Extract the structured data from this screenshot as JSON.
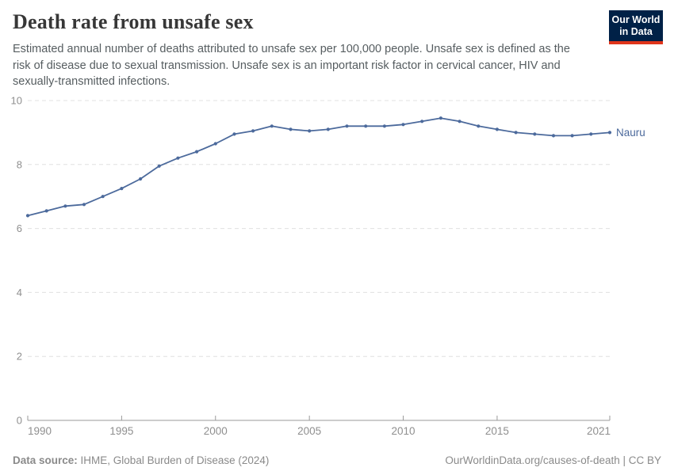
{
  "header": {
    "title": "Death rate from unsafe sex",
    "subtitle": "Estimated annual number of deaths attributed to unsafe sex per 100,000 people. Unsafe sex is defined as the risk of disease due to sexual transmission. Unsafe sex is an important risk factor in cervical cancer, HIV and sexually-transmitted infections.",
    "logo": {
      "line1": "Our World",
      "line2": "in Data"
    }
  },
  "chart_data": {
    "type": "line",
    "title": "Death rate from unsafe sex",
    "xlabel": "",
    "ylabel": "",
    "xlim": [
      1990,
      2021
    ],
    "ylim": [
      0,
      10
    ],
    "x_ticks": [
      1990,
      1995,
      2000,
      2005,
      2010,
      2015,
      2021
    ],
    "y_ticks": [
      0,
      2,
      4,
      6,
      8,
      10
    ],
    "grid": "horizontal-dashed",
    "legend_position": "end-of-line-label",
    "x": [
      1990,
      1991,
      1992,
      1993,
      1994,
      1995,
      1996,
      1997,
      1998,
      1999,
      2000,
      2001,
      2002,
      2003,
      2004,
      2005,
      2006,
      2007,
      2008,
      2009,
      2010,
      2011,
      2012,
      2013,
      2014,
      2015,
      2016,
      2017,
      2018,
      2019,
      2020,
      2021
    ],
    "series": [
      {
        "name": "Nauru",
        "color": "#4c6a9c",
        "values": [
          6.4,
          6.55,
          6.7,
          6.75,
          7.0,
          7.25,
          7.55,
          7.95,
          8.2,
          8.4,
          8.65,
          8.95,
          9.05,
          9.2,
          9.1,
          9.05,
          9.1,
          9.2,
          9.2,
          9.2,
          9.25,
          9.35,
          9.45,
          9.35,
          9.2,
          9.1,
          9.0,
          8.95,
          8.9,
          8.9,
          8.95,
          9.0
        ]
      }
    ]
  },
  "colors": {
    "grid": "#e0e0e0",
    "axis": "#9a9a9a",
    "tick_label": "#8f8f8f"
  },
  "footer": {
    "source_label": "Data source:",
    "source_text": "IHME, Global Burden of Disease (2024)",
    "rights": "OurWorldinData.org/causes-of-death | CC BY"
  }
}
